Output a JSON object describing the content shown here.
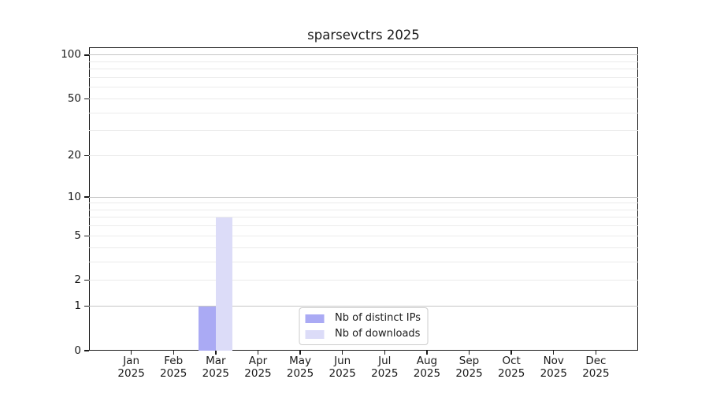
{
  "figure": {
    "background": "#ffffff"
  },
  "chart_data": {
    "type": "bar",
    "title": "sparsevctrs 2025",
    "categories": [
      "Jan",
      "Feb",
      "Mar",
      "Apr",
      "May",
      "Jun",
      "Jul",
      "Aug",
      "Sep",
      "Oct",
      "Nov",
      "Dec"
    ],
    "x_tick_year": "2025",
    "series": [
      {
        "name": "Nb of distinct IPs",
        "color": "#aaaaf4",
        "values": [
          0,
          0,
          1,
          0,
          0,
          0,
          0,
          0,
          0,
          0,
          0,
          0
        ]
      },
      {
        "name": "Nb of downloads",
        "color": "#dcdcf8",
        "values": [
          0,
          0,
          7,
          0,
          0,
          0,
          0,
          0,
          0,
          0,
          0,
          0
        ]
      }
    ],
    "y_axis": {
      "scale": "log1p",
      "tick_values": [
        0,
        1,
        2,
        5,
        10,
        20,
        50,
        100
      ],
      "tick_labels": [
        "0",
        "1",
        "2",
        "5",
        "10",
        "20",
        "50",
        "100"
      ],
      "max": 113,
      "major_gridlines": [
        1,
        10,
        100
      ],
      "minor_gridlines": [
        2,
        3,
        4,
        5,
        6,
        7,
        8,
        9,
        20,
        30,
        40,
        50,
        60,
        70,
        80,
        90
      ]
    },
    "xlabel": "",
    "ylabel": "",
    "legend": {
      "position": "lower center"
    },
    "colors": {
      "major_grid": "#c6c6c6",
      "minor_grid": "#ebebeb",
      "spine": "#1a1a1a",
      "tick": "#1a1a1a",
      "text": "#1a1a1a",
      "legend_border": "#cccccc"
    }
  }
}
